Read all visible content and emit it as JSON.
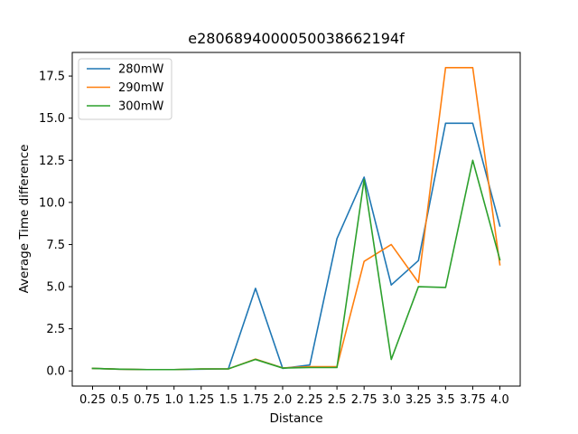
{
  "chart_data": {
    "type": "line",
    "title": "e2806894000050038662194f",
    "xlabel": "Distance",
    "ylabel": "Average Time difference",
    "x": [
      "0.25",
      "0.5",
      "0.75",
      "1.0",
      "1.25",
      "1.5",
      "1.75",
      "2.0",
      "2.25",
      "2.5",
      "2.75",
      "3.0",
      "3.25",
      "3.5",
      "3.75",
      "4.0"
    ],
    "ylim": [
      -0.9,
      18.9
    ],
    "yticks": [
      "0.0",
      "2.5",
      "5.0",
      "7.5",
      "10.0",
      "12.5",
      "15.0",
      "17.5"
    ],
    "legend_position": "top-left",
    "grid": false,
    "series": [
      {
        "name": "280mW",
        "color": "#1f77b4",
        "values": [
          0.15,
          0.1,
          0.08,
          0.08,
          0.1,
          0.12,
          4.9,
          0.15,
          0.35,
          7.85,
          11.5,
          5.1,
          6.55,
          14.7,
          14.7,
          8.6
        ]
      },
      {
        "name": "290mW",
        "color": "#ff7f0e",
        "values": [
          0.15,
          0.1,
          0.08,
          0.08,
          0.12,
          0.12,
          0.7,
          0.18,
          0.25,
          0.25,
          6.5,
          7.5,
          5.25,
          18.0,
          18.0,
          6.3
        ]
      },
      {
        "name": "300mW",
        "color": "#2ca02c",
        "values": [
          0.15,
          0.1,
          0.08,
          0.08,
          0.12,
          0.12,
          0.68,
          0.17,
          0.2,
          0.2,
          11.35,
          0.68,
          5.0,
          4.95,
          12.5,
          6.6
        ]
      }
    ]
  }
}
